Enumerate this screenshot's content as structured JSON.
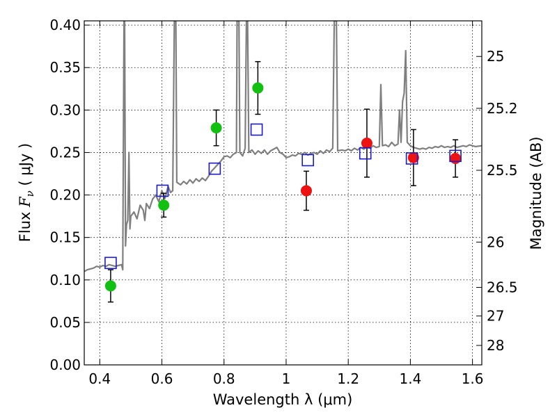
{
  "chart_data": {
    "type": "scatter",
    "xlabel": "Wavelength  λ (μm)",
    "ylabel_prefix": "Flux  ",
    "ylabel_symbol": "F",
    "ylabel_sub": "ν",
    "ylabel_suffix": "  ( μJy )",
    "y2label": "Magnitude (AB)",
    "xlim": [
      0.35,
      1.63
    ],
    "ylim": [
      0.0,
      0.405
    ],
    "grid": true,
    "x_ticks": [
      {
        "value": 0.4,
        "label": "0.4"
      },
      {
        "value": 0.6,
        "label": "0.6"
      },
      {
        "value": 0.8,
        "label": "0.8"
      },
      {
        "value": 1.0,
        "label": "1"
      },
      {
        "value": 1.2,
        "label": "1.2"
      },
      {
        "value": 1.4,
        "label": "1.4"
      },
      {
        "value": 1.6,
        "label": "1.6"
      }
    ],
    "y_ticks": [
      {
        "value": 0.0,
        "label": "0.00"
      },
      {
        "value": 0.05,
        "label": "0.05"
      },
      {
        "value": 0.1,
        "label": "0.10"
      },
      {
        "value": 0.15,
        "label": "0.15"
      },
      {
        "value": 0.2,
        "label": "0.20"
      },
      {
        "value": 0.25,
        "label": "0.25"
      },
      {
        "value": 0.3,
        "label": "0.30"
      },
      {
        "value": 0.35,
        "label": "0.35"
      },
      {
        "value": 0.4,
        "label": "0.40"
      }
    ],
    "y2_ticks": [
      {
        "value": 25,
        "label": "25"
      },
      {
        "value": 25.2,
        "label": "25.2"
      },
      {
        "value": 25.5,
        "label": "25.5"
      },
      {
        "value": 26,
        "label": "26"
      },
      {
        "value": 26.5,
        "label": "26.5"
      },
      {
        "value": 27,
        "label": "27"
      },
      {
        "value": 28,
        "label": "28"
      }
    ],
    "colors": {
      "spectrum": "#7f7f7f",
      "green": "#12c012",
      "red": "#ee1111",
      "model": "#1a1acc",
      "errorbar": "#000000"
    },
    "series": [
      {
        "kind": "observed-green",
        "points": [
          {
            "x": 0.435,
            "y": 0.093,
            "err": 0.019
          },
          {
            "x": 0.606,
            "y": 0.188,
            "err": 0.014
          },
          {
            "x": 0.775,
            "y": 0.279,
            "err": 0.021
          },
          {
            "x": 0.909,
            "y": 0.326,
            "err": 0.031
          }
        ]
      },
      {
        "kind": "observed-red",
        "points": [
          {
            "x": 1.065,
            "y": 0.205,
            "err": 0.023
          },
          {
            "x": 1.26,
            "y": 0.261,
            "err": 0.04
          },
          {
            "x": 1.41,
            "y": 0.244,
            "err": 0.033
          },
          {
            "x": 1.545,
            "y": 0.243,
            "err": 0.022
          }
        ]
      },
      {
        "kind": "model-squares",
        "points": [
          {
            "x": 0.435,
            "y": 0.12
          },
          {
            "x": 0.602,
            "y": 0.205
          },
          {
            "x": 0.77,
            "y": 0.231
          },
          {
            "x": 0.905,
            "y": 0.277
          },
          {
            "x": 1.07,
            "y": 0.241
          },
          {
            "x": 1.255,
            "y": 0.249
          },
          {
            "x": 1.405,
            "y": 0.243
          },
          {
            "x": 1.545,
            "y": 0.246
          }
        ]
      }
    ],
    "spectrum": [
      [
        0.35,
        0.11
      ],
      [
        0.36,
        0.112
      ],
      [
        0.37,
        0.113
      ],
      [
        0.38,
        0.114
      ],
      [
        0.39,
        0.116
      ],
      [
        0.4,
        0.115
      ],
      [
        0.41,
        0.117
      ],
      [
        0.42,
        0.116
      ],
      [
        0.43,
        0.118
      ],
      [
        0.44,
        0.117
      ],
      [
        0.45,
        0.116
      ],
      [
        0.46,
        0.117
      ],
      [
        0.47,
        0.118
      ],
      [
        0.474,
        0.112
      ],
      [
        0.478,
        0.405
      ],
      [
        0.48,
        0.405
      ],
      [
        0.483,
        0.14
      ],
      [
        0.486,
        0.165
      ],
      [
        0.49,
        0.17
      ],
      [
        0.494,
        0.25
      ],
      [
        0.497,
        0.16
      ],
      [
        0.5,
        0.175
      ],
      [
        0.51,
        0.18
      ],
      [
        0.52,
        0.172
      ],
      [
        0.53,
        0.188
      ],
      [
        0.54,
        0.182
      ],
      [
        0.545,
        0.17
      ],
      [
        0.55,
        0.19
      ],
      [
        0.56,
        0.184
      ],
      [
        0.57,
        0.195
      ],
      [
        0.58,
        0.2
      ],
      [
        0.59,
        0.192
      ],
      [
        0.6,
        0.205
      ],
      [
        0.61,
        0.196
      ],
      [
        0.62,
        0.21
      ],
      [
        0.628,
        0.203
      ],
      [
        0.635,
        0.205
      ],
      [
        0.64,
        0.405
      ],
      [
        0.645,
        0.405
      ],
      [
        0.648,
        0.215
      ],
      [
        0.66,
        0.212
      ],
      [
        0.67,
        0.216
      ],
      [
        0.68,
        0.213
      ],
      [
        0.69,
        0.218
      ],
      [
        0.7,
        0.214
      ],
      [
        0.71,
        0.219
      ],
      [
        0.72,
        0.216
      ],
      [
        0.73,
        0.22
      ],
      [
        0.74,
        0.217
      ],
      [
        0.75,
        0.222
      ],
      [
        0.76,
        0.228
      ],
      [
        0.77,
        0.232
      ],
      [
        0.78,
        0.236
      ],
      [
        0.79,
        0.24
      ],
      [
        0.8,
        0.245
      ],
      [
        0.81,
        0.246
      ],
      [
        0.82,
        0.244
      ],
      [
        0.83,
        0.248
      ],
      [
        0.84,
        0.25
      ],
      [
        0.842,
        0.405
      ],
      [
        0.848,
        0.405
      ],
      [
        0.851,
        0.25
      ],
      [
        0.86,
        0.246
      ],
      [
        0.868,
        0.255
      ],
      [
        0.872,
        0.405
      ],
      [
        0.876,
        0.405
      ],
      [
        0.88,
        0.25
      ],
      [
        0.89,
        0.253
      ],
      [
        0.9,
        0.248
      ],
      [
        0.91,
        0.252
      ],
      [
        0.92,
        0.249
      ],
      [
        0.93,
        0.253
      ],
      [
        0.94,
        0.248
      ],
      [
        0.95,
        0.252
      ],
      [
        0.96,
        0.254
      ],
      [
        0.97,
        0.256
      ],
      [
        0.98,
        0.25
      ],
      [
        0.99,
        0.248
      ],
      [
        1.0,
        0.244
      ],
      [
        1.01,
        0.245
      ],
      [
        1.02,
        0.247
      ],
      [
        1.03,
        0.246
      ],
      [
        1.04,
        0.249
      ],
      [
        1.05,
        0.248
      ],
      [
        1.06,
        0.25
      ],
      [
        1.07,
        0.247
      ],
      [
        1.08,
        0.249
      ],
      [
        1.09,
        0.25
      ],
      [
        1.1,
        0.248
      ],
      [
        1.11,
        0.252
      ],
      [
        1.12,
        0.249
      ],
      [
        1.13,
        0.253
      ],
      [
        1.14,
        0.251
      ],
      [
        1.15,
        0.255
      ],
      [
        1.155,
        0.405
      ],
      [
        1.162,
        0.405
      ],
      [
        1.166,
        0.252
      ],
      [
        1.18,
        0.253
      ],
      [
        1.19,
        0.252
      ],
      [
        1.2,
        0.254
      ],
      [
        1.21,
        0.252
      ],
      [
        1.22,
        0.255
      ],
      [
        1.23,
        0.253
      ],
      [
        1.24,
        0.256
      ],
      [
        1.25,
        0.254
      ],
      [
        1.26,
        0.257
      ],
      [
        1.27,
        0.255
      ],
      [
        1.28,
        0.258
      ],
      [
        1.29,
        0.256
      ],
      [
        1.3,
        0.257
      ],
      [
        1.305,
        0.33
      ],
      [
        1.31,
        0.258
      ],
      [
        1.32,
        0.259
      ],
      [
        1.33,
        0.257
      ],
      [
        1.34,
        0.262
      ],
      [
        1.35,
        0.258
      ],
      [
        1.36,
        0.26
      ],
      [
        1.365,
        0.3
      ],
      [
        1.37,
        0.262
      ],
      [
        1.375,
        0.31
      ],
      [
        1.38,
        0.32
      ],
      [
        1.385,
        0.37
      ],
      [
        1.39,
        0.262
      ],
      [
        1.4,
        0.258
      ],
      [
        1.41,
        0.256
      ],
      [
        1.42,
        0.255
      ],
      [
        1.43,
        0.254
      ],
      [
        1.44,
        0.255
      ],
      [
        1.45,
        0.254
      ],
      [
        1.46,
        0.256
      ],
      [
        1.47,
        0.255
      ],
      [
        1.48,
        0.257
      ],
      [
        1.49,
        0.256
      ],
      [
        1.5,
        0.258
      ],
      [
        1.51,
        0.256
      ],
      [
        1.52,
        0.257
      ],
      [
        1.53,
        0.256
      ],
      [
        1.54,
        0.258
      ],
      [
        1.55,
        0.256
      ],
      [
        1.56,
        0.257
      ],
      [
        1.57,
        0.258
      ],
      [
        1.58,
        0.257
      ],
      [
        1.59,
        0.259
      ],
      [
        1.6,
        0.258
      ],
      [
        1.61,
        0.257
      ],
      [
        1.63,
        0.258
      ]
    ]
  }
}
